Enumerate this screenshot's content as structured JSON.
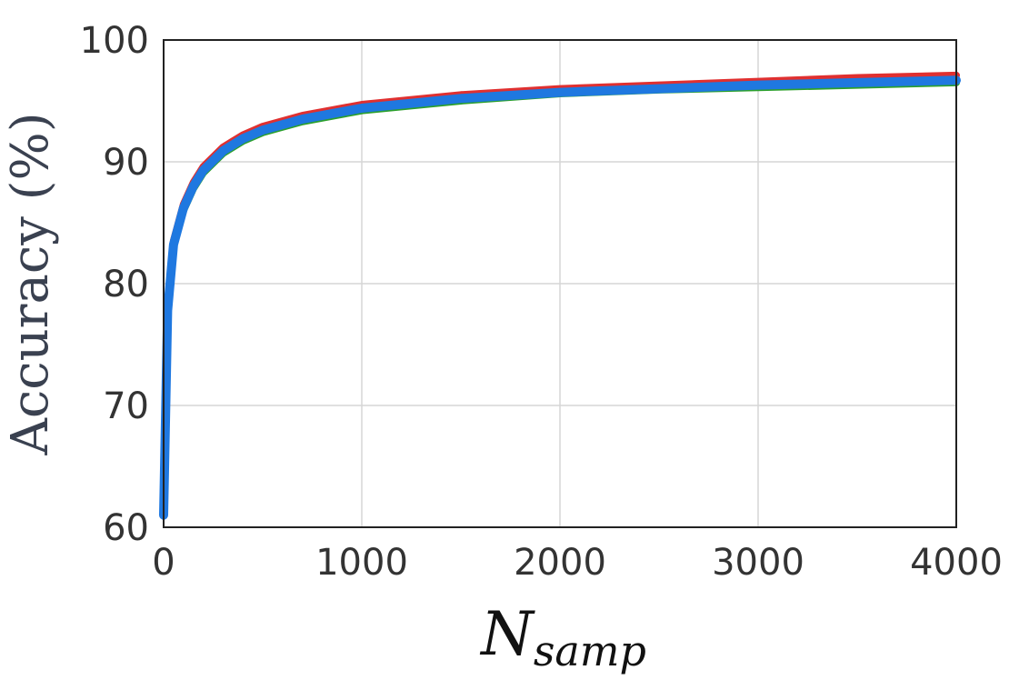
{
  "chart_data": {
    "type": "line",
    "title": "",
    "xlabel": "N",
    "xlabel_subscript": "samp",
    "ylabel": "Accuracy (%)",
    "xlim": [
      0,
      4000
    ],
    "ylim": [
      60,
      100
    ],
    "xticks": [
      0,
      1000,
      2000,
      3000,
      4000
    ],
    "yticks": [
      60,
      70,
      80,
      90,
      100
    ],
    "grid": true,
    "series": [
      {
        "color": "#e03030",
        "x": [
          0,
          20,
          50,
          100,
          150,
          200,
          300,
          400,
          500,
          700,
          1000,
          1500,
          2000,
          2500,
          3000,
          3500,
          4000
        ],
        "y": [
          61,
          78,
          83.5,
          86.5,
          88.3,
          89.6,
          91.2,
          92.2,
          92.9,
          93.8,
          94.7,
          95.5,
          96.0,
          96.3,
          96.6,
          96.9,
          97.1
        ]
      },
      {
        "color": "#2ca02c",
        "x": [
          0,
          20,
          50,
          100,
          150,
          200,
          300,
          400,
          500,
          700,
          1000,
          1500,
          2000,
          2500,
          3000,
          3500,
          4000
        ],
        "y": [
          61,
          77.5,
          83,
          86,
          87.8,
          89.1,
          90.7,
          91.7,
          92.4,
          93.3,
          94.2,
          95.0,
          95.6,
          95.9,
          96.1,
          96.3,
          96.5
        ]
      },
      {
        "color": "#1f78e0",
        "x": [
          0,
          20,
          50,
          100,
          150,
          200,
          300,
          400,
          500,
          700,
          1000,
          1500,
          2000,
          2500,
          3000,
          3500,
          4000
        ],
        "y": [
          61,
          77.8,
          83.2,
          86.2,
          88.0,
          89.3,
          90.9,
          91.9,
          92.6,
          93.5,
          94.4,
          95.2,
          95.7,
          96.0,
          96.3,
          96.5,
          96.7
        ]
      }
    ]
  }
}
